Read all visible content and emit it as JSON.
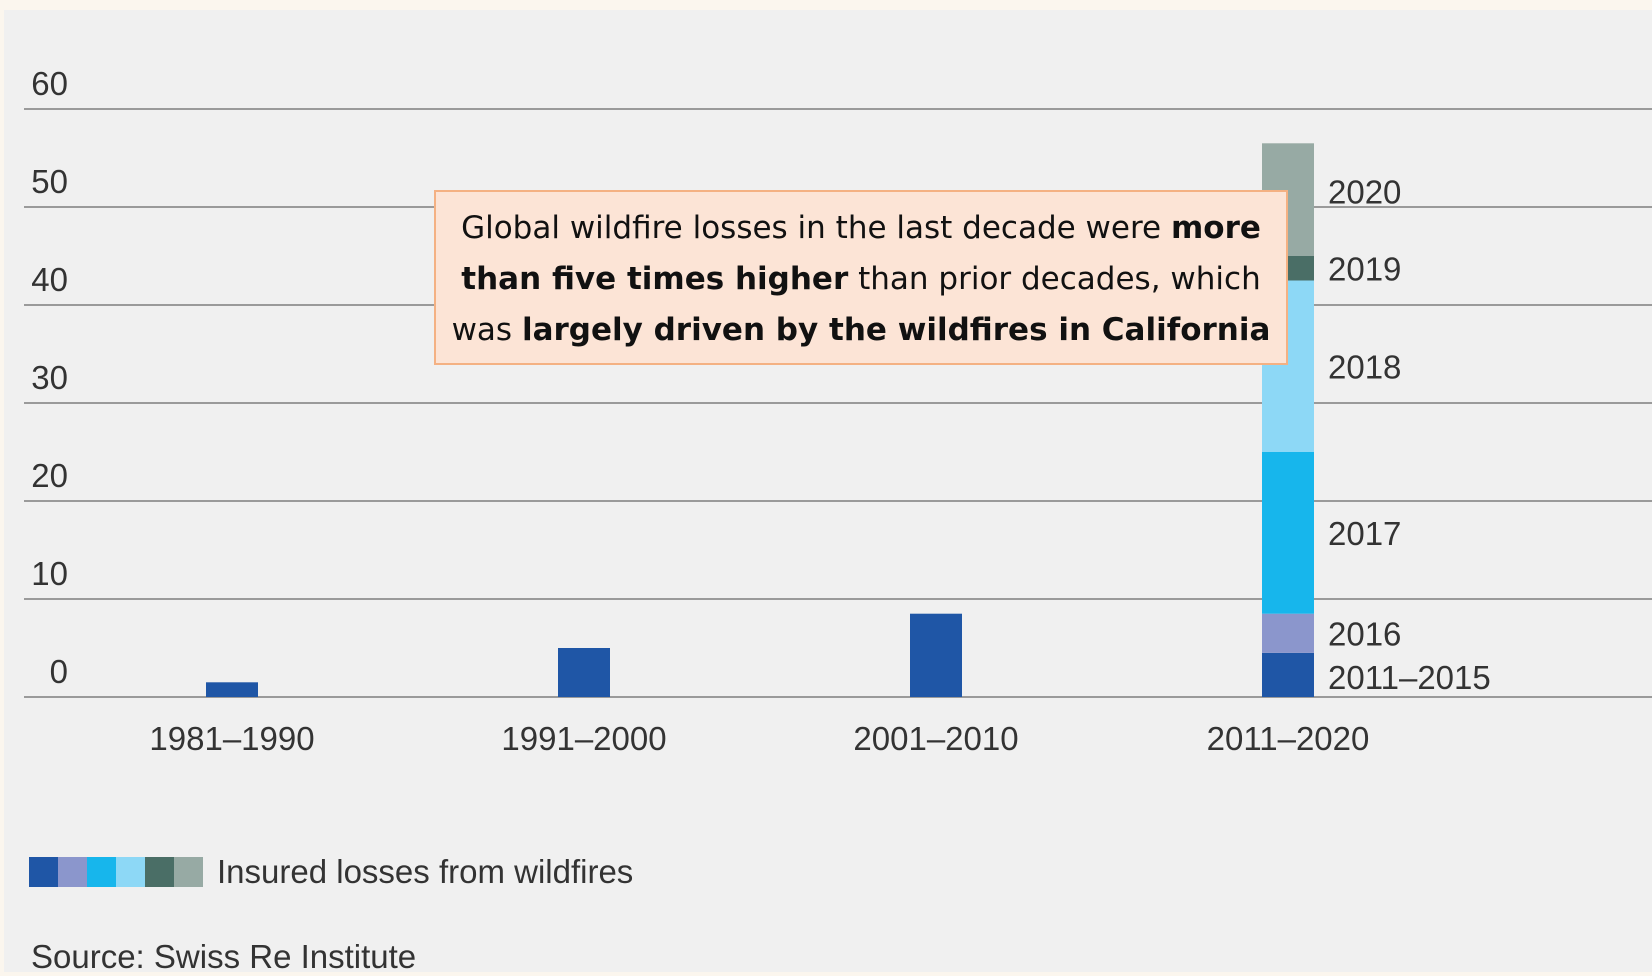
{
  "chart_data": {
    "type": "bar",
    "stacked": true,
    "categories": [
      "1981–1990",
      "1991–2000",
      "2001–2010",
      "2011–2020"
    ],
    "yticks": [
      "0",
      "10",
      "20",
      "30",
      "40",
      "50",
      "60"
    ],
    "ylim": [
      0,
      60
    ],
    "grid": true,
    "series": [
      {
        "name": "2011–2015",
        "color": "#1f56a6",
        "values": [
          1.5,
          5,
          8.5,
          4.5
        ]
      },
      {
        "name": "2016",
        "color": "#8b96cc",
        "values": [
          0,
          0,
          0,
          4
        ]
      },
      {
        "name": "2017",
        "color": "#17b6ec",
        "values": [
          0,
          0,
          0,
          16.5
        ]
      },
      {
        "name": "2018",
        "color": "#8dd8f6",
        "values": [
          0,
          0,
          0,
          17.5
        ]
      },
      {
        "name": "2019",
        "color": "#4a6e66",
        "values": [
          0,
          0,
          0,
          2.5
        ]
      },
      {
        "name": "2020",
        "color": "#97aaa4",
        "values": [
          0,
          0,
          0,
          11.5
        ]
      }
    ],
    "annotation": {
      "line1_normal": "Global wildfire losses in the last decade were ",
      "line1_bold": "more",
      "line2_bold": "than five times higher",
      "line2_normal": " than prior decades, which",
      "line3_normal": "was ",
      "line3_bold": "largely driven by the wildfires in California"
    },
    "legend": {
      "label": "Insured losses from wildfires",
      "colors": [
        "#1f56a6",
        "#8b96cc",
        "#17b6ec",
        "#8dd8f6",
        "#4a6e66",
        "#97aaa4"
      ]
    },
    "source": "Source: Swiss Re Institute"
  }
}
